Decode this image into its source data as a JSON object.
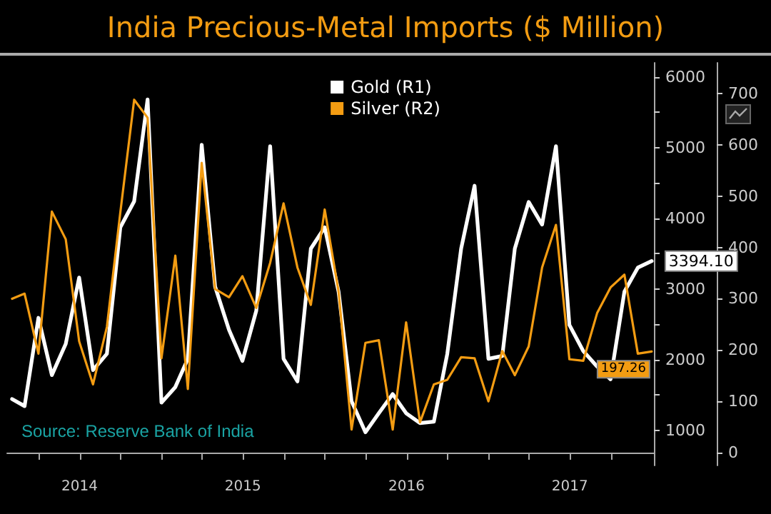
{
  "chart_data": {
    "type": "line",
    "title": "India Precious-Metal Imports ($ Million)",
    "x": [
      "2014-01-31",
      "2014-02-28",
      "2014-03-31",
      "2014-04-30",
      "2014-05-31",
      "2014-06-30",
      "2014-07-31",
      "2014-08-31",
      "2014-09-30",
      "2014-10-31",
      "2014-11-30",
      "2014-12-31",
      "2015-01-31",
      "2015-02-28",
      "2015-03-31",
      "2015-04-30",
      "2015-05-31",
      "2015-06-30",
      "2015-07-31",
      "2015-08-31",
      "2015-09-30",
      "2015-10-31",
      "2015-11-30",
      "2015-12-31",
      "2016-01-31",
      "2016-02-29",
      "2016-03-31",
      "2016-04-30",
      "2016-05-31",
      "2016-06-30",
      "2016-07-31",
      "2016-08-31",
      "2016-09-30",
      "2016-10-31",
      "2016-11-30",
      "2016-12-31",
      "2017-01-31",
      "2017-02-28",
      "2017-03-31",
      "2017-04-30",
      "2017-05-31",
      "2017-06-30",
      "2017-07-31",
      "2017-08-31",
      "2017-09-30",
      "2017-10-31",
      "2017-11-30",
      "2017-12-31"
    ],
    "series": [
      {
        "name": "Gold (R1)",
        "color": "#ffffff",
        "values": [
          1440,
          1340,
          2590,
          1780,
          2220,
          3160,
          1850,
          2080,
          3870,
          4240,
          5680,
          1390,
          1610,
          2010,
          5040,
          3030,
          2420,
          1980,
          2690,
          5020,
          2010,
          1690,
          3570,
          3870,
          2960,
          1410,
          970,
          1240,
          1510,
          1240,
          1100,
          1120,
          2080,
          3570,
          4460,
          2010,
          2050,
          3570,
          4230,
          3910,
          5020,
          2490,
          2120,
          1900,
          1720,
          2960,
          3300,
          3394.1
        ],
        "value_labels": [
          null,
          null,
          null,
          null,
          null,
          null,
          null,
          null,
          null,
          null,
          null,
          null,
          null,
          null,
          null,
          null,
          null,
          null,
          null,
          null,
          null,
          null,
          null,
          null,
          null,
          null,
          null,
          null,
          null,
          null,
          null,
          null,
          null,
          null,
          null,
          null,
          null,
          null,
          null,
          null,
          null,
          null,
          null,
          null,
          null,
          null,
          null,
          "3394.10"
        ]
      },
      {
        "name": "Silver (R2)",
        "color": "#f39c12",
        "axis": "y2",
        "values": [
          300,
          310,
          193,
          470,
          416,
          217,
          133,
          245,
          468,
          688,
          653,
          184,
          384,
          124,
          565,
          319,
          303,
          344,
          282,
          370,
          486,
          361,
          288,
          474,
          314,
          45,
          214,
          219,
          45,
          254,
          59,
          133,
          142,
          186,
          184,
          100,
          198,
          151,
          207,
          361,
          444,
          182,
          179,
          272,
          322,
          347,
          193,
          197.26
        ],
        "value_labels": [
          null,
          null,
          null,
          null,
          null,
          null,
          null,
          null,
          null,
          null,
          null,
          null,
          null,
          null,
          null,
          null,
          null,
          null,
          null,
          null,
          null,
          null,
          null,
          null,
          null,
          null,
          null,
          null,
          null,
          null,
          null,
          null,
          null,
          null,
          null,
          null,
          null,
          null,
          null,
          null,
          null,
          null,
          null,
          null,
          null,
          null,
          null,
          "197.26"
        ]
      }
    ],
    "xlim": [
      "2014-01-20",
      "2018-01-05"
    ],
    "xticks": [
      {
        "value": "2014-04-01",
        "label": null
      },
      {
        "value": "2014-07-01",
        "label": "2014"
      },
      {
        "value": "2014-10-01",
        "label": null
      },
      {
        "value": "2015-01-01",
        "label": null
      },
      {
        "value": "2015-04-01",
        "label": null
      },
      {
        "value": "2015-07-01",
        "label": "2015"
      },
      {
        "value": "2015-10-01",
        "label": null
      },
      {
        "value": "2016-01-01",
        "label": null
      },
      {
        "value": "2016-04-01",
        "label": null
      },
      {
        "value": "2016-07-01",
        "label": "2016"
      },
      {
        "value": "2016-10-01",
        "label": null
      },
      {
        "value": "2017-01-01",
        "label": null
      },
      {
        "value": "2017-04-01",
        "label": null
      },
      {
        "value": "2017-07-01",
        "label": "2017"
      },
      {
        "value": "2017-10-01",
        "label": null
      }
    ],
    "ylim": [
      500,
      6200
    ],
    "yticks": [
      1000,
      {
        "value": 1500,
        "label": null
      },
      2000,
      {
        "value": 2500,
        "label": null
      },
      3000,
      {
        "value": 3500,
        "label": null
      },
      4000,
      {
        "value": 4500,
        "label": null
      },
      5000,
      {
        "value": 5500,
        "label": null
      },
      6000
    ],
    "y2lim": [
      -25,
      760
    ],
    "y2ticks": [
      0,
      100,
      200,
      300,
      400,
      500,
      600,
      700
    ],
    "annotations": [
      "Source: Reserve Bank of India"
    ],
    "legend": "top",
    "grid": false,
    "marker": "none",
    "line_style": "solid"
  }
}
